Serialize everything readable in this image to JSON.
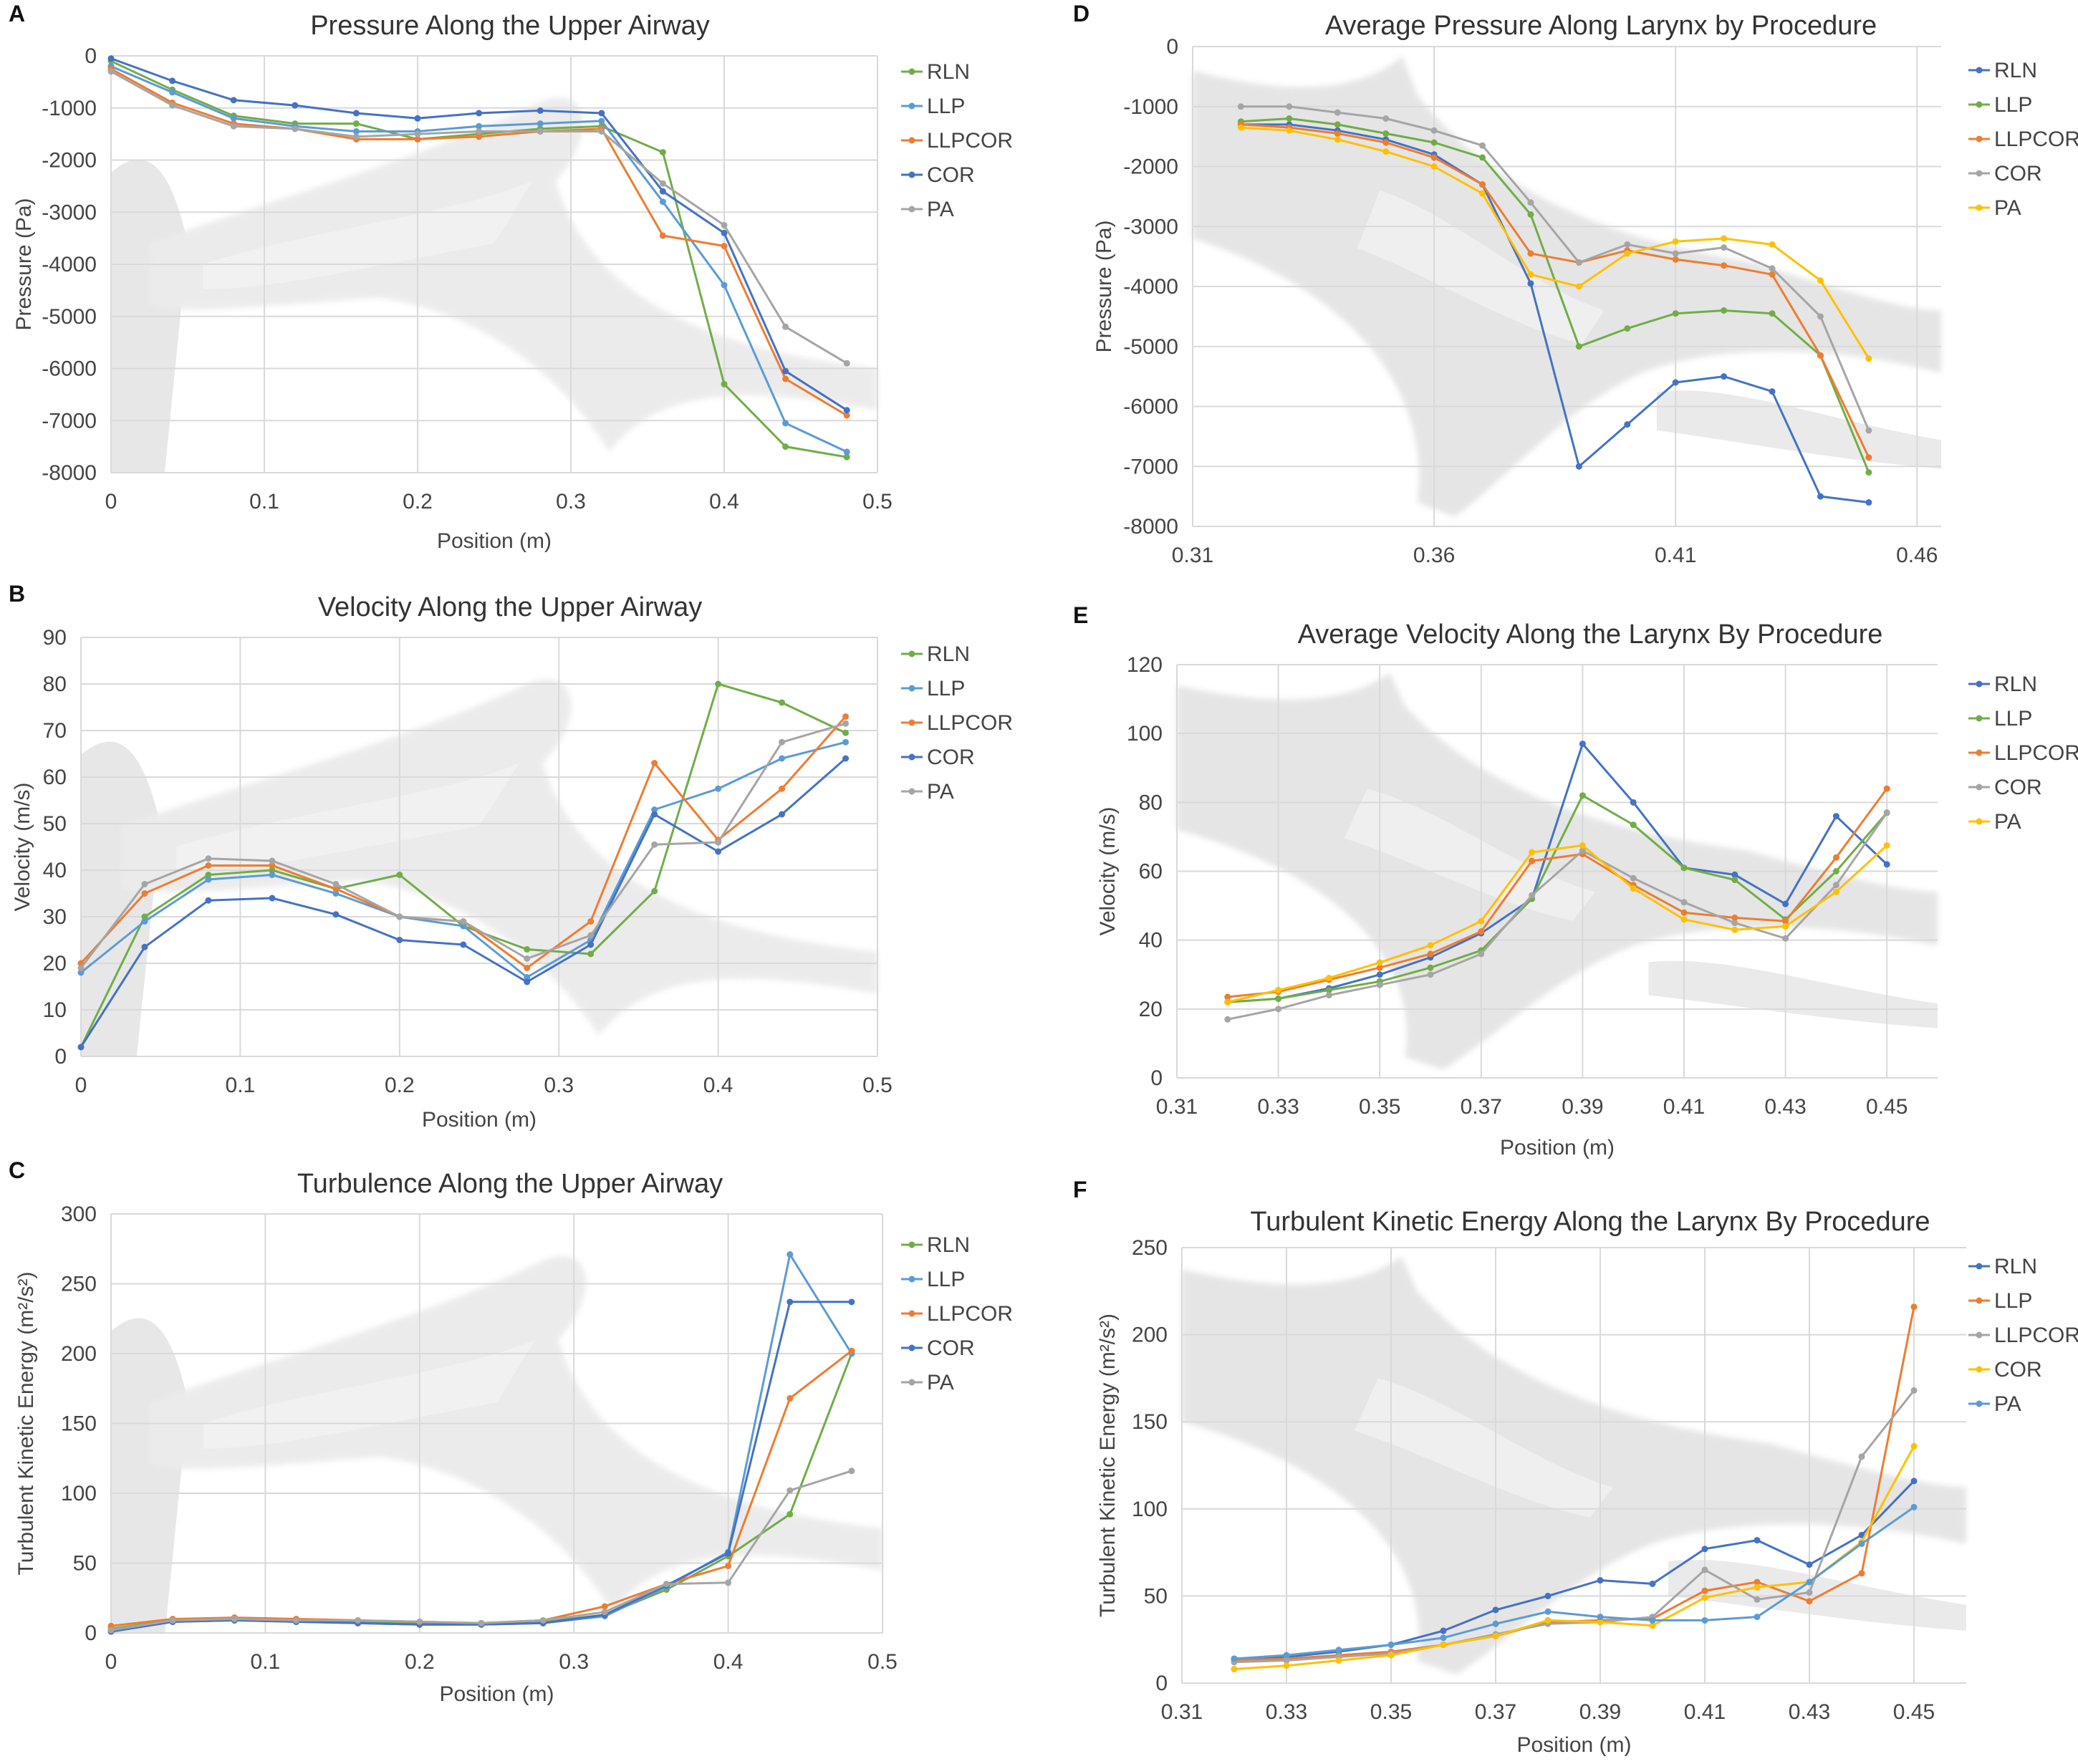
{
  "colors": {
    "blue": "#4472C4",
    "orange": "#ED7D31",
    "gray": "#A5A5A5",
    "yellow": "#FFC000",
    "lightblue": "#5B9BD5",
    "green": "#70AD47",
    "grid": "#D9D9D9",
    "background_anatomy": "#D6D6D6"
  },
  "chart_data": [
    {
      "panel": "A",
      "type": "line",
      "title": "Pressure Along the Upper Airway",
      "xlabel": "Position (m)",
      "ylabel": "Pressure (Pa)",
      "xlim": [
        0,
        0.5
      ],
      "ylim": [
        -8000,
        0
      ],
      "xticks": [
        0,
        0.1,
        0.2,
        0.3,
        0.4,
        0.5
      ],
      "xtick_labels": [
        "0",
        "0.1",
        "0.2",
        "0.3",
        "0.4",
        "0.5"
      ],
      "yticks": [
        0,
        -1000,
        -2000,
        -3000,
        -4000,
        -5000,
        -6000,
        -7000,
        -8000
      ],
      "ytick_labels": [
        "0",
        "-1000",
        "-2000",
        "-3000",
        "-4000",
        "-5000",
        "-6000",
        "-7000",
        "-8000"
      ],
      "x": [
        0,
        0.04,
        0.08,
        0.12,
        0.16,
        0.2,
        0.24,
        0.28,
        0.32,
        0.36,
        0.4,
        0.44,
        0.48
      ],
      "series": [
        {
          "name": "RLN",
          "color": "#70AD47",
          "values": [
            -100,
            -650,
            -1150,
            -1300,
            -1300,
            -1600,
            -1500,
            -1400,
            -1350,
            -1850,
            -6300,
            -7500,
            -7700
          ]
        },
        {
          "name": "LLP",
          "color": "#5B9BD5",
          "values": [
            -200,
            -700,
            -1200,
            -1350,
            -1450,
            -1450,
            -1350,
            -1300,
            -1250,
            -2800,
            -4400,
            -7050,
            -7600
          ]
        },
        {
          "name": "LLPCOR",
          "color": "#ED7D31",
          "values": [
            -250,
            -900,
            -1300,
            -1400,
            -1600,
            -1600,
            -1550,
            -1450,
            -1400,
            -3450,
            -3650,
            -6200,
            -6900
          ]
        },
        {
          "name": "COR",
          "color": "#4472C4",
          "values": [
            -50,
            -480,
            -850,
            -950,
            -1100,
            -1200,
            -1100,
            -1050,
            -1100,
            -2600,
            -3400,
            -6050,
            -6800
          ]
        },
        {
          "name": "PA",
          "color": "#A5A5A5",
          "values": [
            -300,
            -950,
            -1350,
            -1400,
            -1550,
            -1500,
            -1450,
            -1450,
            -1450,
            -2450,
            -3250,
            -5200,
            -5900
          ]
        }
      ]
    },
    {
      "panel": "B",
      "type": "line",
      "title": "Velocity Along the Upper Airway",
      "xlabel": "Position (m)",
      "ylabel": "Velocity (m/s)",
      "xlim": [
        0,
        0.5
      ],
      "ylim": [
        0,
        90
      ],
      "xticks": [
        0,
        0.1,
        0.2,
        0.3,
        0.4,
        0.5
      ],
      "xtick_labels": [
        "0",
        "0.1",
        "0.2",
        "0.3",
        "0.4",
        "0.5"
      ],
      "yticks": [
        0,
        10,
        20,
        30,
        40,
        50,
        60,
        70,
        80,
        90
      ],
      "ytick_labels": [
        "0",
        "10",
        "20",
        "30",
        "40",
        "50",
        "60",
        "70",
        "80",
        "90"
      ],
      "x": [
        0,
        0.04,
        0.08,
        0.12,
        0.16,
        0.2,
        0.24,
        0.28,
        0.32,
        0.36,
        0.4,
        0.44,
        0.48
      ],
      "series": [
        {
          "name": "RLN",
          "color": "#70AD47",
          "values": [
            2,
            30,
            39,
            40,
            36,
            39,
            28,
            23,
            22,
            35.5,
            80,
            76,
            69.5
          ]
        },
        {
          "name": "LLP",
          "color": "#5B9BD5",
          "values": [
            18,
            29,
            38,
            39,
            35,
            30,
            28,
            17,
            25,
            53,
            57.5,
            64,
            67.5
          ]
        },
        {
          "name": "LLPCOR",
          "color": "#ED7D31",
          "values": [
            20,
            35,
            41,
            41,
            36,
            30,
            29,
            19,
            29,
            63,
            46.5,
            57.5,
            73
          ]
        },
        {
          "name": "COR",
          "color": "#4472C4",
          "values": [
            2,
            23.5,
            33.5,
            34,
            30.5,
            25,
            24,
            16,
            24,
            52,
            44,
            52,
            64
          ]
        },
        {
          "name": "PA",
          "color": "#A5A5A5",
          "values": [
            19,
            37,
            42.5,
            42,
            37,
            30,
            29,
            21,
            26,
            45.5,
            46,
            67.5,
            71.5
          ]
        }
      ]
    },
    {
      "panel": "C",
      "type": "line",
      "title": "Turbulence Along the Upper Airway",
      "xlabel": "Position (m)",
      "ylabel": "Turbulent Kinetic Energy (m²/s²)",
      "xlim": [
        0,
        0.5
      ],
      "ylim": [
        0,
        300
      ],
      "xticks": [
        0,
        0.1,
        0.2,
        0.3,
        0.4,
        0.5
      ],
      "xtick_labels": [
        "0",
        "0.1",
        "0.2",
        "0.3",
        "0.4",
        "0.5"
      ],
      "yticks": [
        0,
        50,
        100,
        150,
        200,
        250,
        300
      ],
      "ytick_labels": [
        "0",
        "50",
        "100",
        "150",
        "200",
        "250",
        "300"
      ],
      "x": [
        0,
        0.04,
        0.08,
        0.12,
        0.16,
        0.2,
        0.24,
        0.28,
        0.32,
        0.36,
        0.4,
        0.44,
        0.48
      ],
      "series": [
        {
          "name": "RLN",
          "color": "#70AD47",
          "values": [
            3,
            9,
            10,
            9,
            8,
            7,
            7,
            8,
            13,
            31,
            55,
            85,
            200
          ]
        },
        {
          "name": "LLP",
          "color": "#5B9BD5",
          "values": [
            1,
            8,
            9,
            8,
            7,
            6,
            6,
            7,
            12,
            33,
            58,
            271,
            200
          ]
        },
        {
          "name": "LLPCOR",
          "color": "#ED7D31",
          "values": [
            5,
            10,
            11,
            10,
            9,
            8,
            7,
            9,
            19,
            35,
            48,
            168,
            202
          ]
        },
        {
          "name": "COR",
          "color": "#4472C4",
          "values": [
            1,
            8,
            9,
            8,
            7,
            6,
            6,
            7,
            13,
            34,
            57,
            237,
            237
          ]
        },
        {
          "name": "PA",
          "color": "#A5A5A5",
          "values": [
            2,
            9,
            10,
            9,
            9,
            8,
            7,
            9,
            15,
            35,
            36,
            102,
            116
          ]
        }
      ]
    },
    {
      "panel": "D",
      "type": "line",
      "title": "Average Pressure Along Larynx by Procedure",
      "xlabel": "",
      "ylabel": "Pressure (Pa)",
      "xlim": [
        0.31,
        0.465
      ],
      "ylim": [
        -8000,
        0
      ],
      "xticks": [
        0.31,
        0.36,
        0.41,
        0.46
      ],
      "xtick_labels": [
        "0.31",
        "0.36",
        "0.41",
        "0.46"
      ],
      "yticks": [
        0,
        -1000,
        -2000,
        -3000,
        -4000,
        -5000,
        -6000,
        -7000,
        -8000
      ],
      "ytick_labels": [
        "0",
        "-1000",
        "-2000",
        "-3000",
        "-4000",
        "-5000",
        "-6000",
        "-7000",
        "-8000"
      ],
      "x": [
        0.32,
        0.33,
        0.34,
        0.35,
        0.36,
        0.37,
        0.38,
        0.39,
        0.4,
        0.41,
        0.42,
        0.43,
        0.44,
        0.45
      ],
      "series": [
        {
          "name": "RLN",
          "color": "#4472C4",
          "values": [
            -1300,
            -1300,
            -1400,
            -1550,
            -1800,
            -2300,
            -3950,
            -7000,
            -6300,
            -5600,
            -5500,
            -5750,
            -7500,
            -7600
          ]
        },
        {
          "name": "LLP",
          "color": "#70AD47",
          "values": [
            -1250,
            -1200,
            -1300,
            -1450,
            -1600,
            -1850,
            -2800,
            -5000,
            -4700,
            -4450,
            -4400,
            -4450,
            -5150,
            -7100
          ]
        },
        {
          "name": "LLPCOR",
          "color": "#ED7D31",
          "values": [
            -1300,
            -1350,
            -1450,
            -1600,
            -1850,
            -2300,
            -3450,
            -3600,
            -3400,
            -3550,
            -3650,
            -3800,
            -5150,
            -6850
          ]
        },
        {
          "name": "COR",
          "color": "#A5A5A5",
          "values": [
            -1000,
            -1000,
            -1100,
            -1200,
            -1400,
            -1650,
            -2600,
            -3600,
            -3300,
            -3450,
            -3350,
            -3700,
            -4500,
            -6400
          ]
        },
        {
          "name": "PA",
          "color": "#FFC000",
          "values": [
            -1350,
            -1400,
            -1550,
            -1750,
            -2000,
            -2450,
            -3800,
            -4000,
            -3450,
            -3250,
            -3200,
            -3300,
            -3900,
            -5200
          ]
        }
      ]
    },
    {
      "panel": "E",
      "type": "line",
      "title": "Average Velocity Along the Larynx By Procedure",
      "xlabel": "Position (m)",
      "ylabel": "Velocity (m/s)",
      "xlim": [
        0.31,
        0.46
      ],
      "ylim": [
        0,
        120
      ],
      "xticks": [
        0.31,
        0.33,
        0.35,
        0.37,
        0.39,
        0.41,
        0.43,
        0.45
      ],
      "xtick_labels": [
        "0.31",
        "0.33",
        "0.35",
        "0.37",
        "0.39",
        "0.41",
        "0.43",
        "0.45"
      ],
      "yticks": [
        0,
        20,
        40,
        60,
        80,
        100,
        120
      ],
      "ytick_labels": [
        "0",
        "20",
        "40",
        "60",
        "80",
        "100",
        "120"
      ],
      "x": [
        0.32,
        0.33,
        0.34,
        0.35,
        0.36,
        0.37,
        0.38,
        0.39,
        0.4,
        0.41,
        0.42,
        0.43,
        0.44,
        0.45
      ],
      "series": [
        {
          "name": "RLN",
          "color": "#4472C4",
          "values": [
            22,
            23,
            26,
            30,
            35,
            42,
            52,
            97,
            80,
            61,
            59,
            50.5,
            76,
            62
          ]
        },
        {
          "name": "LLP",
          "color": "#70AD47",
          "values": [
            22,
            23,
            25.5,
            28,
            32,
            37,
            52,
            82,
            73.5,
            61,
            57.5,
            46,
            60,
            77
          ]
        },
        {
          "name": "LLPCOR",
          "color": "#ED7D31",
          "values": [
            23.5,
            25,
            28.5,
            32,
            36,
            42.5,
            63,
            65,
            56,
            48,
            46.5,
            45.5,
            64,
            84
          ]
        },
        {
          "name": "COR",
          "color": "#A5A5A5",
          "values": [
            17,
            20,
            24,
            27,
            30,
            36,
            53,
            66,
            58,
            51,
            45,
            40.5,
            56,
            77
          ]
        },
        {
          "name": "PA",
          "color": "#FFC000",
          "values": [
            22,
            25.5,
            29,
            33.5,
            38.5,
            45.5,
            65.5,
            67.5,
            55,
            46,
            43,
            44,
            54,
            67.5
          ]
        }
      ]
    },
    {
      "panel": "F",
      "type": "line",
      "title": "Turbulent Kinetic Energy Along the Larynx By Procedure",
      "xlabel": "Position (m)",
      "ylabel": "Turbulent Kinetic Energy (m²/s²)",
      "xlim": [
        0.31,
        0.46
      ],
      "ylim": [
        0,
        250
      ],
      "xticks": [
        0.31,
        0.33,
        0.35,
        0.37,
        0.39,
        0.41,
        0.43,
        0.45
      ],
      "xtick_labels": [
        "0.31",
        "0.33",
        "0.35",
        "0.37",
        "0.39",
        "0.41",
        "0.43",
        "0.45"
      ],
      "yticks": [
        0,
        50,
        100,
        150,
        200,
        250
      ],
      "ytick_labels": [
        "0",
        "50",
        "100",
        "150",
        "200",
        "250"
      ],
      "x": [
        0.32,
        0.33,
        0.34,
        0.35,
        0.36,
        0.37,
        0.38,
        0.39,
        0.4,
        0.41,
        0.42,
        0.43,
        0.44,
        0.45
      ],
      "series": [
        {
          "name": "RLN",
          "color": "#4472C4",
          "values": [
            14,
            15,
            18,
            22,
            30,
            42,
            50,
            59,
            57,
            77,
            82,
            68,
            85,
            116
          ]
        },
        {
          "name": "LLP",
          "color": "#ED7D31",
          "values": [
            13,
            14,
            16,
            18,
            22,
            27,
            35,
            36,
            37,
            53,
            58,
            47,
            63,
            216
          ]
        },
        {
          "name": "LLPCOR",
          "color": "#A5A5A5",
          "values": [
            12,
            13,
            15,
            17,
            22,
            28,
            34,
            35,
            38,
            65,
            48,
            52,
            130,
            168
          ]
        },
        {
          "name": "COR",
          "color": "#FFC000",
          "values": [
            8,
            10,
            13,
            16,
            22,
            27,
            36,
            35,
            33,
            49,
            55,
            58,
            81,
            136
          ]
        },
        {
          "name": "PA",
          "color": "#5B9BD5",
          "values": [
            14,
            16,
            19,
            22,
            26,
            34,
            41,
            38,
            36,
            36,
            38,
            58,
            80,
            101
          ]
        }
      ]
    }
  ]
}
